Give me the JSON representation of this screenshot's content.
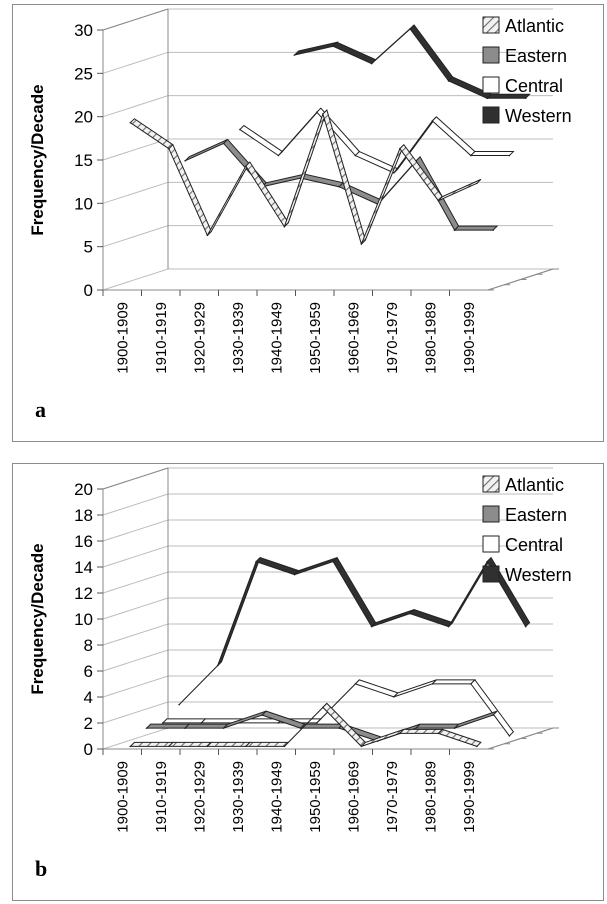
{
  "chart_data": [
    {
      "panel_label": "a",
      "type": "line",
      "style": "3d",
      "ylabel": "Frequency/Decade",
      "ylim": [
        0,
        30
      ],
      "yticks": [
        0,
        5,
        10,
        15,
        20,
        25,
        30
      ],
      "categories": [
        "1900-1909",
        "1910-1919",
        "1920-1929",
        "1930-1939",
        "1940-1949",
        "1950-1959",
        "1960-1969",
        "1970-1979",
        "1980-1989",
        "1990-1999"
      ],
      "series": [
        {
          "name": "Atlantic",
          "values": [
            19,
            16,
            6,
            14,
            7,
            20,
            5,
            16,
            10,
            12
          ]
        },
        {
          "name": "Eastern",
          "values": [
            null,
            14,
            16,
            11,
            12,
            11,
            9,
            14,
            6,
            6
          ]
        },
        {
          "name": "Central",
          "values": [
            null,
            null,
            17,
            14,
            19,
            14,
            12,
            18,
            14,
            14
          ]
        },
        {
          "name": "Western",
          "values": [
            null,
            null,
            null,
            25,
            26,
            24,
            28,
            22,
            20,
            20
          ]
        }
      ],
      "legend": "top-right"
    },
    {
      "panel_label": "b",
      "type": "line",
      "style": "3d",
      "ylabel": "Frequency/Decade",
      "ylim": [
        0,
        20
      ],
      "yticks": [
        0,
        2,
        4,
        6,
        8,
        10,
        12,
        14,
        16,
        18,
        20
      ],
      "categories": [
        "1900-1909",
        "1910-1919",
        "1920-1929",
        "1930-1939",
        "1940-1949",
        "1950-1959",
        "1960-1969",
        "1970-1979",
        "1980-1989",
        "1990-1999"
      ],
      "series": [
        {
          "name": "Atlantic",
          "values": [
            0,
            0,
            0,
            0,
            0,
            3,
            0,
            1,
            1,
            0
          ]
        },
        {
          "name": "Eastern",
          "values": [
            1,
            1,
            1,
            2,
            1,
            1,
            0,
            1,
            1,
            2
          ]
        },
        {
          "name": "Central",
          "values": [
            1,
            1,
            1,
            1,
            1,
            4,
            3,
            4,
            4,
            0
          ]
        },
        {
          "name": "Western",
          "values": [
            2,
            5,
            13,
            12,
            13,
            8,
            9,
            8,
            13,
            8
          ]
        }
      ],
      "legend": "top-right"
    }
  ],
  "legend_items": [
    "Atlantic",
    "Eastern",
    "Central",
    "Western"
  ],
  "colors": {
    "Atlantic": "#e8e8e8",
    "Eastern": "#8c8c8c",
    "Central": "#ffffff",
    "Western": "#303030",
    "outline": "#222222"
  }
}
